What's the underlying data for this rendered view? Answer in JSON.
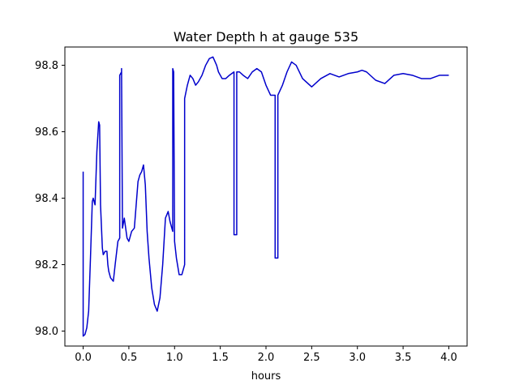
{
  "chart_data": {
    "type": "line",
    "title": "Water Depth h at gauge 535",
    "xlabel": "hours",
    "ylabel": "",
    "xlim": [
      -0.2,
      4.2
    ],
    "ylim": [
      97.955,
      98.855
    ],
    "xticks": [
      0.0,
      0.5,
      1.0,
      1.5,
      2.0,
      2.5,
      3.0,
      3.5,
      4.0
    ],
    "xtick_labels": [
      "0.0",
      "0.5",
      "1.0",
      "1.5",
      "2.0",
      "2.5",
      "3.0",
      "3.5",
      "4.0"
    ],
    "yticks": [
      98.0,
      98.2,
      98.4,
      98.6,
      98.8
    ],
    "ytick_labels": [
      "98.0",
      "98.2",
      "98.4",
      "98.6",
      "98.8"
    ],
    "grid": false,
    "series": [
      {
        "color": "#0000cc",
        "x": [
          0.0,
          0.0,
          0.02,
          0.04,
          0.06,
          0.08,
          0.1,
          0.11,
          0.13,
          0.15,
          0.17,
          0.18,
          0.19,
          0.21,
          0.22,
          0.24,
          0.26,
          0.27,
          0.28,
          0.3,
          0.33,
          0.35,
          0.38,
          0.4,
          0.4,
          0.42,
          0.42,
          0.43,
          0.45,
          0.46,
          0.48,
          0.5,
          0.53,
          0.56,
          0.6,
          0.62,
          0.64,
          0.66,
          0.68,
          0.7,
          0.72,
          0.75,
          0.78,
          0.81,
          0.84,
          0.87,
          0.9,
          0.93,
          0.95,
          0.98,
          0.98,
          0.99,
          1.0,
          1.02,
          1.05,
          1.08,
          1.11,
          1.11,
          1.14,
          1.17,
          1.2,
          1.23,
          1.26,
          1.3,
          1.34,
          1.38,
          1.42,
          1.46,
          1.48,
          1.52,
          1.56,
          1.6,
          1.65,
          1.65,
          1.68,
          1.68,
          1.71,
          1.75,
          1.8,
          1.85,
          1.9,
          1.95,
          2.0,
          2.05,
          2.1,
          2.1,
          2.13,
          2.13,
          2.18,
          2.23,
          2.28,
          2.33,
          2.4,
          2.5,
          2.6,
          2.7,
          2.8,
          2.9,
          3.0,
          3.05,
          3.1,
          3.2,
          3.3,
          3.4,
          3.5,
          3.6,
          3.7,
          3.8,
          3.9,
          4.0
        ],
        "y": [
          98.48,
          97.985,
          97.99,
          98.01,
          98.06,
          98.22,
          98.39,
          98.4,
          98.38,
          98.54,
          98.63,
          98.62,
          98.38,
          98.25,
          98.23,
          98.24,
          98.24,
          98.2,
          98.18,
          98.16,
          98.15,
          98.2,
          98.27,
          98.28,
          98.77,
          98.78,
          98.79,
          98.31,
          98.34,
          98.32,
          98.28,
          98.27,
          98.3,
          98.31,
          98.45,
          98.47,
          98.48,
          98.5,
          98.44,
          98.3,
          98.22,
          98.13,
          98.08,
          98.06,
          98.1,
          98.2,
          98.34,
          98.36,
          98.33,
          98.3,
          98.79,
          98.78,
          98.27,
          98.22,
          98.17,
          98.17,
          98.2,
          98.7,
          98.74,
          98.77,
          98.76,
          98.74,
          98.75,
          98.77,
          98.8,
          98.82,
          98.825,
          98.8,
          98.78,
          98.76,
          98.76,
          98.77,
          98.78,
          98.29,
          98.29,
          98.78,
          98.78,
          98.77,
          98.76,
          98.78,
          98.79,
          98.78,
          98.74,
          98.71,
          98.71,
          98.22,
          98.22,
          98.71,
          98.74,
          98.78,
          98.81,
          98.8,
          98.76,
          98.735,
          98.76,
          98.775,
          98.765,
          98.775,
          98.78,
          98.785,
          98.78,
          98.755,
          98.745,
          98.77,
          98.775,
          98.77,
          98.76,
          98.76,
          98.77,
          98.77
        ]
      }
    ]
  }
}
